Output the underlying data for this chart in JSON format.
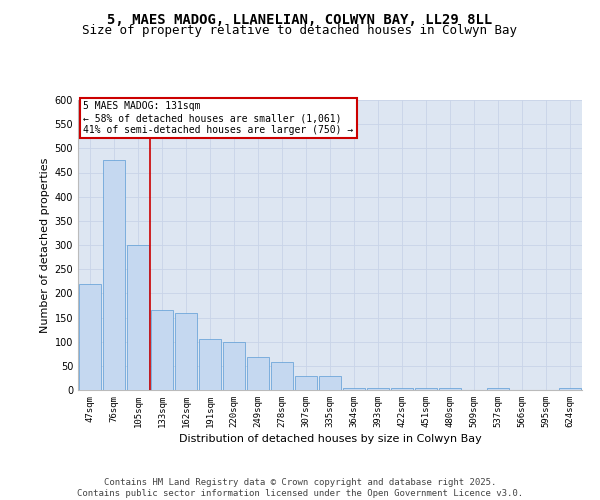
{
  "title_line1": "5, MAES MADOG, LLANELIAN, COLWYN BAY, LL29 8LL",
  "title_line2": "Size of property relative to detached houses in Colwyn Bay",
  "xlabel": "Distribution of detached houses by size in Colwyn Bay",
  "ylabel": "Number of detached properties",
  "categories": [
    "47sqm",
    "76sqm",
    "105sqm",
    "133sqm",
    "162sqm",
    "191sqm",
    "220sqm",
    "249sqm",
    "278sqm",
    "307sqm",
    "335sqm",
    "364sqm",
    "393sqm",
    "422sqm",
    "451sqm",
    "480sqm",
    "509sqm",
    "537sqm",
    "566sqm",
    "595sqm",
    "624sqm"
  ],
  "values": [
    220,
    475,
    300,
    165,
    160,
    105,
    100,
    68,
    57,
    28,
    28,
    5,
    5,
    5,
    5,
    5,
    0,
    5,
    0,
    0,
    5
  ],
  "bar_color": "#c5d8f0",
  "bar_edge_color": "#5b9bd5",
  "grid_color": "#c8d4e8",
  "background_color": "#dde6f2",
  "vline_x": 2.5,
  "vline_color": "#cc0000",
  "annotation_text": "5 MAES MADOG: 131sqm\n← 58% of detached houses are smaller (1,061)\n41% of semi-detached houses are larger (750) →",
  "annotation_box_color": "#cc0000",
  "footer_text": "Contains HM Land Registry data © Crown copyright and database right 2025.\nContains public sector information licensed under the Open Government Licence v3.0.",
  "ylim": [
    0,
    600
  ],
  "yticks": [
    0,
    50,
    100,
    150,
    200,
    250,
    300,
    350,
    400,
    450,
    500,
    550,
    600
  ],
  "title_fontsize": 10,
  "subtitle_fontsize": 9,
  "tick_fontsize": 6.5,
  "label_fontsize": 8,
  "footer_fontsize": 6.5,
  "annot_fontsize": 7
}
